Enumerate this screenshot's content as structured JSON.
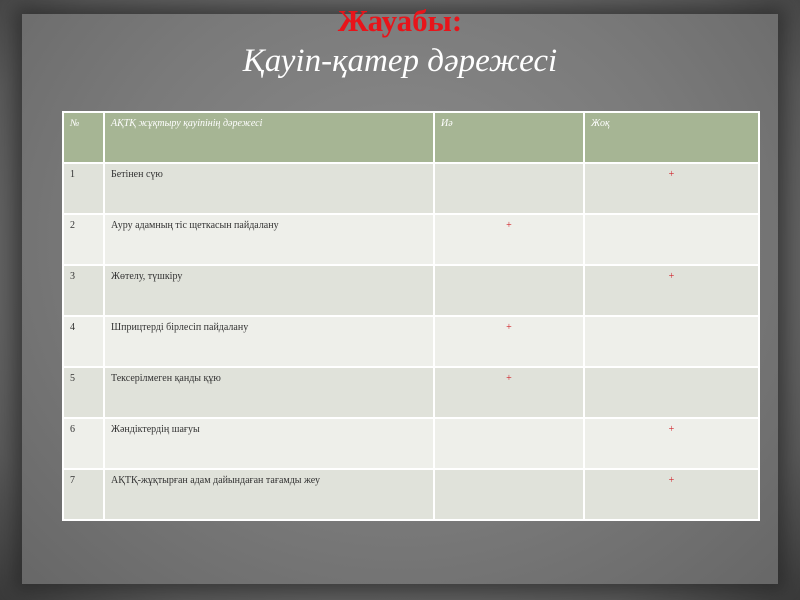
{
  "title": "Жауабы:",
  "subtitle": "Қауіп-қатер дәрежесі",
  "accent_color": "#e8141a",
  "header_color": "#a6b594",
  "table": {
    "headers": [
      "№",
      "АҚТҚ жұқтыру қауіпінің дәрежесі",
      "Иә",
      "Жоқ"
    ],
    "rows": [
      {
        "num": "1",
        "text": "Бетінен сүю",
        "yes": "",
        "no": "+"
      },
      {
        "num": "2",
        "text": "Ауру адамның тіс щеткасын пайдалану",
        "yes": "+",
        "no": ""
      },
      {
        "num": "3",
        "text": "Жөтелу, түшкіру",
        "yes": "",
        "no": "+"
      },
      {
        "num": "4",
        "text": "Шприцтерді бірлесіп пайдалану",
        "yes": "+",
        "no": ""
      },
      {
        "num": "5",
        "text": "Тексерілмеген қанды құю",
        "yes": "+",
        "no": ""
      },
      {
        "num": "6",
        "text": "Жәндіктердің шағуы",
        "yes": "",
        "no": "+"
      },
      {
        "num": "7",
        "text": "АҚТҚ-жұқтырған адам дайындаған тағамды жеу",
        "yes": "",
        "no": "+"
      }
    ]
  }
}
